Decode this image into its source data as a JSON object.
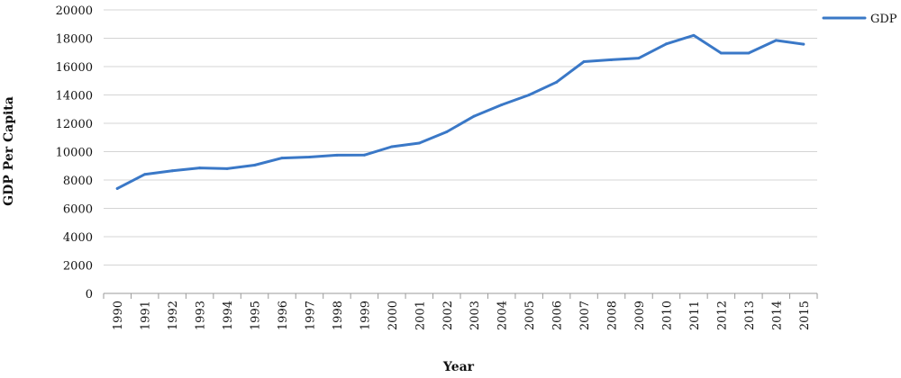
{
  "chart_data": {
    "type": "line",
    "title": "",
    "xlabel": "Year",
    "ylabel": "GDP Per Capita",
    "ylim": [
      0,
      20000
    ],
    "yticks": [
      0,
      2000,
      4000,
      6000,
      8000,
      10000,
      12000,
      14000,
      16000,
      18000,
      20000
    ],
    "grid": true,
    "legend_position": "top-right",
    "x": [
      "1990",
      "1991",
      "1992",
      "1993",
      "1994",
      "1995",
      "1996",
      "1997",
      "1998",
      "1999",
      "2000",
      "2001",
      "2002",
      "2003",
      "2004",
      "2005",
      "2006",
      "2007",
      "2008",
      "2009",
      "2010",
      "2011",
      "2012",
      "2013",
      "2014",
      "2015"
    ],
    "series": [
      {
        "name": "GDP",
        "color": "#3a78c7",
        "values": [
          7400,
          8400,
          8650,
          8850,
          8800,
          9050,
          9550,
          9620,
          9750,
          9760,
          10350,
          10600,
          11400,
          12500,
          13300,
          14000,
          14900,
          16350,
          16480,
          16600,
          17600,
          18200,
          16950,
          16950,
          17850,
          17580
        ]
      }
    ]
  }
}
